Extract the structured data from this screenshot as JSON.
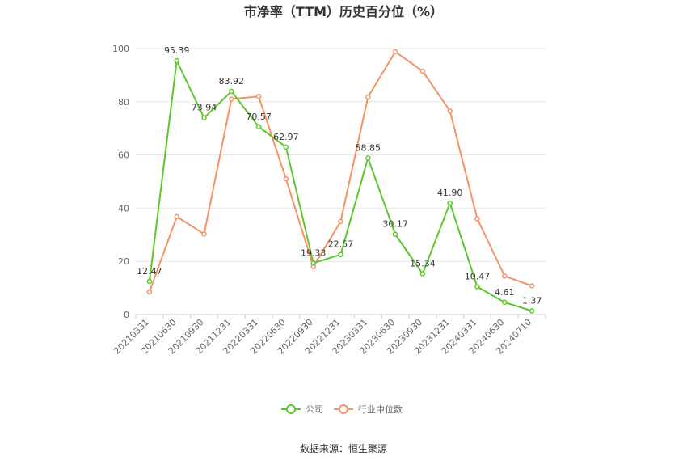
{
  "chart_data": {
    "type": "line",
    "title": "市净率（TTM）历史百分位（%）",
    "source": "数据来源：恒生聚源",
    "categories": [
      "20210331",
      "20210630",
      "20210930",
      "20211231",
      "20220331",
      "20220630",
      "20220930",
      "20221231",
      "20230331",
      "20230630",
      "20230930",
      "20231231",
      "20240331",
      "20240630",
      "20240710"
    ],
    "ylim": [
      0,
      100
    ],
    "yticks": [
      "0",
      "20",
      "40",
      "60",
      "80",
      "100"
    ],
    "grid": true,
    "legend_position": "bottom",
    "series": [
      {
        "name": "公司",
        "color": "#5cc72b",
        "values": [
          12.47,
          95.39,
          73.94,
          83.92,
          70.57,
          62.97,
          19.33,
          22.57,
          58.85,
          30.17,
          15.34,
          41.9,
          10.47,
          4.61,
          1.37
        ],
        "labels": [
          "12.47",
          "95.39",
          "73.94",
          "83.92",
          "70.57",
          "62.97",
          "19.33",
          "22.57",
          "58.85",
          "30.17",
          "15.34",
          "41.90",
          "10.47",
          "4.61",
          "1.37"
        ]
      },
      {
        "name": "行业中位数",
        "color": "#f29366",
        "values": [
          8.5,
          36.8,
          30.3,
          81.0,
          82.0,
          51.0,
          18.0,
          35.0,
          81.8,
          98.8,
          91.5,
          76.5,
          36.0,
          14.5,
          10.8
        ]
      }
    ]
  }
}
